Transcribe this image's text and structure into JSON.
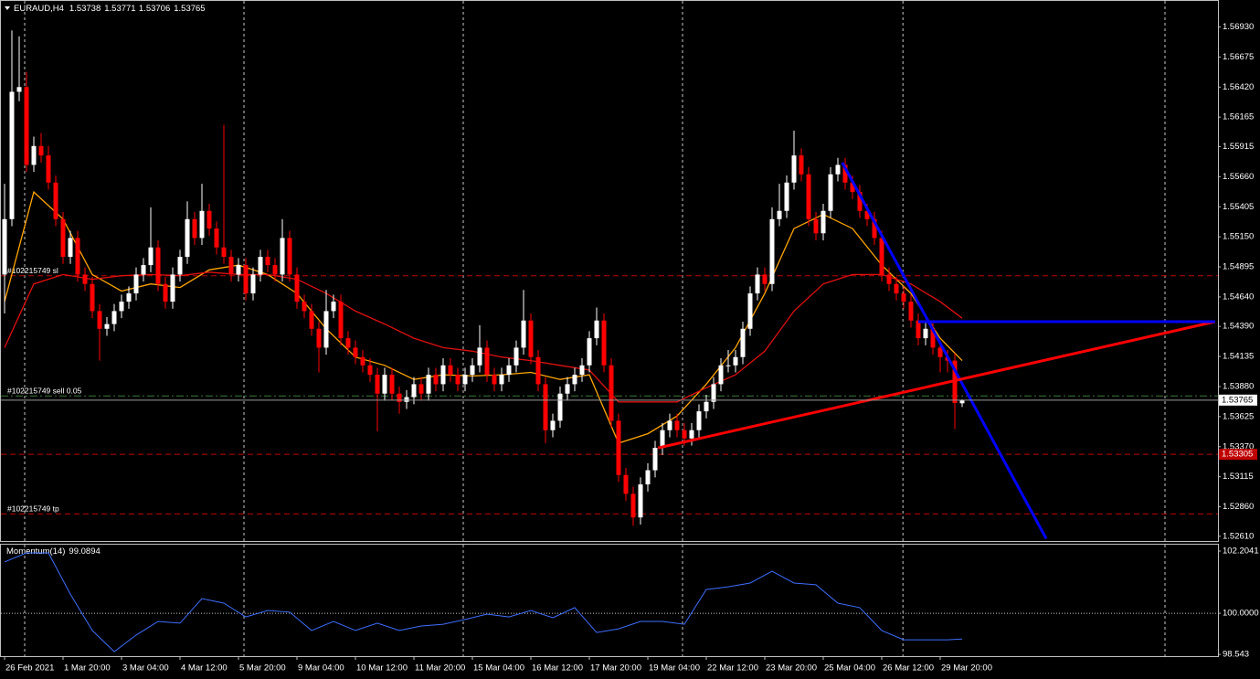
{
  "chart_data": {
    "type": "candlestick",
    "symbol": "EURAUD,H4",
    "categories": [
      "26 Feb 2021",
      null,
      null,
      null,
      null,
      null,
      null,
      null,
      "1 Mar 20:00",
      null,
      null,
      null,
      null,
      null,
      null,
      null,
      "3 Mar 04:00",
      null,
      null,
      null,
      null,
      null,
      null,
      null,
      "4 Mar 12:00",
      null,
      null,
      null,
      null,
      null,
      null,
      null,
      "5 Mar 20:00",
      null,
      null,
      null,
      null,
      null,
      null,
      null,
      "9 Mar 04:00",
      null,
      null,
      null,
      null,
      null,
      null,
      null,
      "10 Mar 12:00",
      null,
      null,
      null,
      null,
      null,
      null,
      null,
      "11 Mar 20:00",
      null,
      null,
      null,
      null,
      null,
      null,
      null,
      "15 Mar 04:00",
      null,
      null,
      null,
      null,
      null,
      null,
      null,
      "16 Mar 12:00",
      null,
      null,
      null,
      null,
      null,
      null,
      null,
      "17 Mar 20:00",
      null,
      null,
      null,
      null,
      null,
      null,
      null,
      "19 Mar 04:00",
      null,
      null,
      null,
      null,
      null,
      null,
      null,
      "22 Mar 12:00",
      null,
      null,
      null,
      null,
      null,
      null,
      null,
      "23 Mar 20:00",
      null,
      null,
      null,
      null,
      null,
      null,
      null,
      "25 Mar 04:00",
      null,
      null,
      null,
      null,
      null,
      null,
      null,
      "26 Mar 12:00",
      null,
      null,
      null,
      null,
      null,
      null,
      null,
      "29 Mar 20:00",
      null,
      null,
      null
    ],
    "xlim": [
      -0.625,
      166
    ],
    "open": [
      1.5483,
      1.553,
      1.5638,
      1.5642,
      1.5576,
      1.5592,
      1.5584,
      1.5561,
      1.553,
      1.5498,
      1.5514,
      1.5483,
      1.5475,
      1.5452,
      1.5437,
      1.5441,
      1.5452,
      1.546,
      1.5467,
      1.5483,
      1.5491,
      1.5506,
      1.5475,
      1.546,
      1.5483,
      1.5498,
      1.553,
      1.5514,
      1.5537,
      1.5522,
      1.5506,
      1.5498,
      1.5483,
      1.5491,
      1.5467,
      1.5483,
      1.5498,
      1.5491,
      1.5483,
      1.5514,
      1.5483,
      1.546,
      1.5452,
      1.5437,
      1.5421,
      1.5452,
      1.546,
      1.5429,
      1.5421,
      1.5413,
      1.5406,
      1.5398,
      1.5382,
      1.5398,
      1.5382,
      1.5375,
      1.5379,
      1.539,
      1.5382,
      1.5398,
      1.539,
      1.5406,
      1.5398,
      1.539,
      1.5398,
      1.5406,
      1.5421,
      1.5398,
      1.539,
      1.5398,
      1.5406,
      1.5421,
      1.5444,
      1.5413,
      1.539,
      1.5351,
      1.5359,
      1.5382,
      1.539,
      1.5398,
      1.5406,
      1.5429,
      1.5444,
      1.5406,
      1.5359,
      1.5313,
      1.5297,
      1.5277,
      1.5305,
      1.5317,
      1.5336,
      1.5351,
      1.5359,
      1.5351,
      1.5344,
      1.5351,
      1.5367,
      1.5375,
      1.539,
      1.5406,
      1.5406,
      1.5413,
      1.5437,
      1.5467,
      1.5483,
      1.5475,
      1.553,
      1.5537,
      1.5561,
      1.5584,
      1.5568,
      1.553,
      1.5518,
      1.5537,
      1.5568,
      1.5576,
      1.5561,
      1.5553,
      1.5537,
      1.553,
      1.5514,
      1.5483,
      1.5475,
      1.5467,
      1.546,
      1.5444,
      1.5429,
      1.5437,
      1.5421,
      1.5413,
      1.541,
      1.53738
    ],
    "high": [
      1.556,
      1.569,
      1.5685,
      1.5655,
      1.56,
      1.5603,
      1.5592,
      1.5567,
      1.5536,
      1.552,
      1.552,
      1.5489,
      1.5481,
      1.5458,
      1.5447,
      1.5458,
      1.5466,
      1.5473,
      1.5489,
      1.5497,
      1.554,
      1.5512,
      1.5481,
      1.5489,
      1.5504,
      1.5545,
      1.5536,
      1.556,
      1.5543,
      1.5528,
      1.561,
      1.5504,
      1.5497,
      1.5497,
      1.5489,
      1.5504,
      1.5504,
      1.5497,
      1.553,
      1.552,
      1.5489,
      1.5466,
      1.5458,
      1.5443,
      1.547,
      1.5466,
      1.5466,
      1.5435,
      1.5427,
      1.5419,
      1.5412,
      1.5404,
      1.5404,
      1.5404,
      1.5388,
      1.5385,
      1.5396,
      1.5396,
      1.5404,
      1.5404,
      1.5412,
      1.5412,
      1.5404,
      1.5404,
      1.5412,
      1.544,
      1.5427,
      1.5404,
      1.5404,
      1.5412,
      1.5427,
      1.547,
      1.545,
      1.5419,
      1.5396,
      1.5365,
      1.5388,
      1.5396,
      1.5404,
      1.5412,
      1.5435,
      1.5455,
      1.545,
      1.5412,
      1.5365,
      1.5319,
      1.5303,
      1.5311,
      1.5323,
      1.5342,
      1.5357,
      1.5365,
      1.5365,
      1.5357,
      1.5357,
      1.5373,
      1.5381,
      1.5396,
      1.5412,
      1.5419,
      1.5419,
      1.5443,
      1.5473,
      1.5489,
      1.5489,
      1.554,
      1.556,
      1.5567,
      1.5605,
      1.559,
      1.5574,
      1.5536,
      1.5543,
      1.5574,
      1.5582,
      1.5582,
      1.5567,
      1.5559,
      1.5543,
      1.5536,
      1.552,
      1.5489,
      1.5481,
      1.5473,
      1.5466,
      1.545,
      1.5443,
      1.5443,
      1.5427,
      1.5419,
      1.5416,
      1.53771
    ],
    "low": [
      1.545,
      1.5524,
      1.563,
      1.557,
      1.557,
      1.5578,
      1.5555,
      1.5524,
      1.5492,
      1.5492,
      1.5477,
      1.5469,
      1.5446,
      1.541,
      1.5431,
      1.5435,
      1.5446,
      1.5454,
      1.5461,
      1.5477,
      1.5485,
      1.5469,
      1.5454,
      1.5454,
      1.5477,
      1.5492,
      1.5508,
      1.5508,
      1.5516,
      1.55,
      1.5492,
      1.5477,
      1.5477,
      1.5461,
      1.5461,
      1.5477,
      1.5485,
      1.5477,
      1.5477,
      1.5477,
      1.5454,
      1.5446,
      1.5431,
      1.54,
      1.5415,
      1.5446,
      1.5423,
      1.5415,
      1.5407,
      1.54,
      1.5392,
      1.535,
      1.5376,
      1.5376,
      1.5365,
      1.5369,
      1.5373,
      1.5376,
      1.5376,
      1.5384,
      1.5384,
      1.5392,
      1.5384,
      1.5384,
      1.5392,
      1.54,
      1.5392,
      1.5384,
      1.5384,
      1.5392,
      1.54,
      1.5415,
      1.5407,
      1.5384,
      1.534,
      1.5345,
      1.5353,
      1.5376,
      1.5384,
      1.5392,
      1.54,
      1.5423,
      1.54,
      1.5353,
      1.5307,
      1.5291,
      1.527,
      1.5271,
      1.5299,
      1.5311,
      1.533,
      1.5345,
      1.5345,
      1.5338,
      1.5338,
      1.5345,
      1.5361,
      1.5369,
      1.5384,
      1.54,
      1.54,
      1.5407,
      1.5431,
      1.5461,
      1.5469,
      1.5469,
      1.5524,
      1.5531,
      1.5555,
      1.5562,
      1.5524,
      1.5512,
      1.5512,
      1.5531,
      1.5562,
      1.5555,
      1.5547,
      1.5531,
      1.5524,
      1.5508,
      1.5477,
      1.5469,
      1.5461,
      1.5454,
      1.5438,
      1.5423,
      1.5423,
      1.5415,
      1.54,
      1.54,
      1.5352,
      1.53706
    ],
    "close": [
      1.553,
      1.5638,
      1.5642,
      1.5576,
      1.5592,
      1.5584,
      1.5561,
      1.553,
      1.5498,
      1.5514,
      1.5483,
      1.5475,
      1.5452,
      1.5437,
      1.5441,
      1.5452,
      1.546,
      1.5467,
      1.5483,
      1.5491,
      1.5506,
      1.5475,
      1.546,
      1.5483,
      1.5498,
      1.553,
      1.5514,
      1.5537,
      1.5522,
      1.5506,
      1.5498,
      1.5483,
      1.5491,
      1.5467,
      1.5483,
      1.5498,
      1.5491,
      1.5483,
      1.5514,
      1.5483,
      1.546,
      1.5452,
      1.5437,
      1.5421,
      1.5452,
      1.546,
      1.5429,
      1.5421,
      1.5413,
      1.5406,
      1.5398,
      1.5382,
      1.5398,
      1.5382,
      1.5375,
      1.5379,
      1.539,
      1.5382,
      1.5398,
      1.539,
      1.5406,
      1.5398,
      1.539,
      1.5398,
      1.5406,
      1.5421,
      1.5398,
      1.539,
      1.5398,
      1.5406,
      1.5421,
      1.5444,
      1.5413,
      1.539,
      1.5351,
      1.5359,
      1.5382,
      1.539,
      1.5398,
      1.5406,
      1.5429,
      1.5444,
      1.5406,
      1.5359,
      1.5313,
      1.5297,
      1.5277,
      1.5305,
      1.5317,
      1.5336,
      1.5351,
      1.5359,
      1.5351,
      1.5344,
      1.5351,
      1.5367,
      1.5375,
      1.539,
      1.5406,
      1.5406,
      1.5413,
      1.5437,
      1.5467,
      1.5483,
      1.5475,
      1.553,
      1.5537,
      1.5561,
      1.5584,
      1.5568,
      1.553,
      1.5518,
      1.5537,
      1.5568,
      1.5576,
      1.5561,
      1.5553,
      1.5537,
      1.553,
      1.5514,
      1.5483,
      1.5475,
      1.5467,
      1.546,
      1.5444,
      1.5429,
      1.5437,
      1.5421,
      1.5413,
      1.541,
      1.5374,
      1.53765
    ],
    "up_color": "#ffffff",
    "down_color": "#ff0000",
    "ylim": [
      1.5257,
      1.5705
    ],
    "yticks": [
      {
        "value": 1.5693,
        "label": "1.56930"
      },
      1.56675,
      {
        "value": 1.5642,
        "label": "1.56420"
      },
      1.56165,
      1.55915,
      {
        "value": 1.5566,
        "label": "1.55660"
      },
      1.55405,
      {
        "value": 1.5515,
        "label": "1.55150"
      },
      1.54895,
      {
        "value": 1.5464,
        "label": "1.54640"
      },
      {
        "value": 1.5439,
        "label": "1.54390"
      },
      1.54135,
      {
        "value": 1.5388,
        "label": "1.53880"
      },
      1.53625,
      {
        "value": 1.5337,
        "label": "1.53370"
      },
      1.53115,
      {
        "value": 1.5286,
        "label": "1.52860"
      },
      {
        "value": 1.5261,
        "label": "1.52610"
      }
    ],
    "grid": true,
    "xgrid": [
      2.75,
      32.75,
      62.75,
      92.75,
      122.9,
      158.75
    ],
    "moving_averages": [
      {
        "color": "#ffa500",
        "x": [
          0,
          4,
          8,
          12,
          16,
          20,
          24,
          28,
          32,
          36,
          40,
          44,
          48,
          52,
          56,
          60,
          64,
          68,
          72,
          76,
          80,
          84,
          88,
          92,
          96,
          100,
          104,
          108,
          112,
          116,
          120,
          124,
          128,
          131
        ],
        "values": [
          1.546,
          1.5553,
          1.553,
          1.5483,
          1.5469,
          1.5475,
          1.5472,
          1.5487,
          1.5491,
          1.5483,
          1.5467,
          1.5437,
          1.5413,
          1.5406,
          1.5394,
          1.5398,
          1.5397,
          1.5398,
          1.54,
          1.5394,
          1.5398,
          1.534,
          1.5348,
          1.5363,
          1.539,
          1.5421,
          1.5467,
          1.5522,
          1.5534,
          1.5522,
          1.5491,
          1.5467,
          1.5429,
          1.541
        ]
      },
      {
        "color": "#e01010",
        "x": [
          0,
          4,
          8,
          12,
          16,
          20,
          24,
          28,
          32,
          36,
          40,
          44,
          48,
          52,
          56,
          60,
          64,
          68,
          72,
          76,
          80,
          84,
          88,
          92,
          96,
          100,
          104,
          108,
          112,
          116,
          120,
          124,
          128,
          131
        ],
        "values": [
          1.5421,
          1.5475,
          1.5483,
          1.5479,
          1.5482,
          1.5483,
          1.5482,
          1.5485,
          1.5483,
          1.5483,
          1.5479,
          1.5467,
          1.5452,
          1.5441,
          1.5429,
          1.5421,
          1.5418,
          1.5413,
          1.541,
          1.5406,
          1.5402,
          1.5375,
          1.5375,
          1.5375,
          1.5387,
          1.5398,
          1.5418,
          1.5452,
          1.5475,
          1.5483,
          1.5483,
          1.5475,
          1.546,
          1.5446
        ]
      }
    ],
    "levels": [
      {
        "label": "#102215749 sl",
        "value": 1.5482,
        "color": "#c00000",
        "dash": "6 4"
      },
      {
        "label": "#102215749 sell 0.05",
        "value": 1.538,
        "color": "#3a7a3a",
        "dash": "8 3 2 3"
      },
      {
        "label": "#102215749 tp",
        "value": 1.528,
        "color": "#c00000",
        "dash": "6 4"
      },
      {
        "value": 1.53305,
        "color": "#c00000",
        "dash": "6 4",
        "tag": true
      }
    ],
    "trendlines": [
      {
        "color": "#0000ff",
        "x": [
          114.6,
          142.5
        ],
        "values": [
          1.5578,
          1.5259
        ]
      },
      {
        "color": "#ff0000",
        "x": [
          89.4,
          165.6
        ],
        "values": [
          1.5336,
          1.5443
        ]
      },
      {
        "color": "#0000ff",
        "x": [
          125,
          165.6
        ],
        "values": [
          1.5443,
          1.5443
        ]
      }
    ],
    "momentum": {
      "label": "Momentum(14)",
      "color": "#3f6fff",
      "x": [
        0,
        3,
        6,
        9,
        12,
        15,
        18,
        21,
        24,
        27,
        30,
        33,
        36,
        39,
        42,
        45,
        48,
        51,
        54,
        57,
        60,
        63,
        66,
        69,
        72,
        75,
        78,
        81,
        84,
        87,
        90,
        93,
        96,
        99,
        102,
        105,
        108,
        111,
        114,
        117,
        120,
        123,
        126,
        129,
        131
      ],
      "values": [
        101.82,
        102.14,
        102.14,
        100.68,
        99.39,
        98.64,
        99.23,
        99.71,
        99.65,
        100.52,
        100.36,
        99.87,
        100.1,
        100.04,
        99.39,
        99.71,
        99.39,
        99.65,
        99.39,
        99.55,
        99.61,
        99.78,
        99.97,
        99.87,
        100.1,
        99.84,
        100.2,
        99.32,
        99.45,
        99.71,
        99.71,
        99.61,
        100.84,
        100.94,
        101.07,
        101.49,
        101.07,
        101.01,
        100.36,
        100.2,
        99.39,
        99.06,
        99.06,
        99.06,
        99.0894
      ],
      "ylim": [
        98.481,
        102.431
      ],
      "yticks": [
        102.2041,
        {
          "value": 100,
          "label": "100.0000"
        },
        98.543
      ],
      "levels": [
        100
      ]
    }
  }
}
